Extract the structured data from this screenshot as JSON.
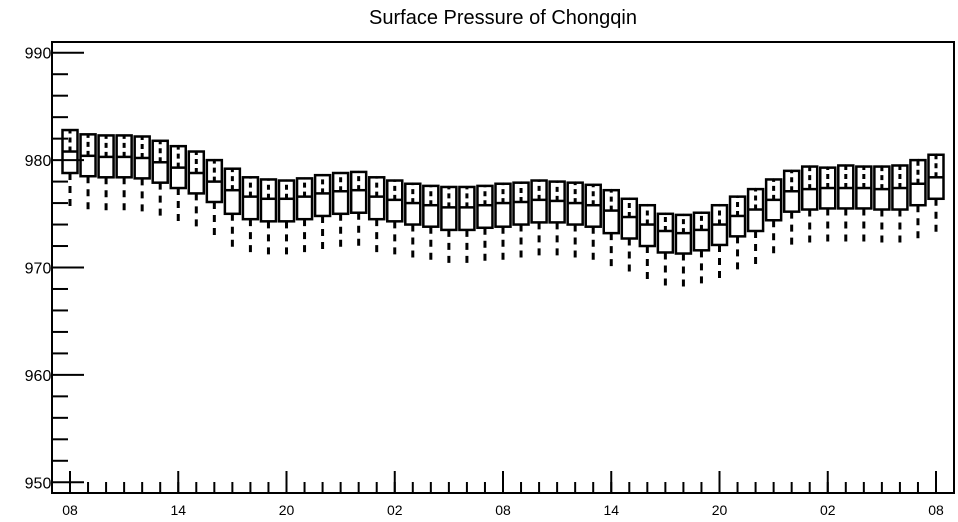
{
  "chart_data": {
    "type": "boxplot",
    "title": "Surface Pressure of Chongqin",
    "xlabel": "",
    "ylabel": "",
    "ylim": [
      949,
      991
    ],
    "yticks": [
      950,
      960,
      970,
      980,
      990
    ],
    "xtick_labels": [
      "08",
      "14",
      "20",
      "02",
      "08",
      "14",
      "20",
      "02",
      "08"
    ],
    "xtick_positions": [
      0,
      6,
      12,
      18,
      24,
      30,
      36,
      42,
      48
    ],
    "grid": false,
    "series": [
      {
        "x": [
          0,
          1,
          2,
          3,
          4,
          5,
          6,
          7,
          8,
          9,
          10,
          11,
          12,
          13,
          14,
          15,
          16,
          17,
          18,
          19,
          20,
          21,
          22,
          23,
          24,
          25,
          26,
          27,
          28,
          29,
          30,
          31,
          32,
          33,
          34,
          35,
          36,
          37,
          38,
          39,
          40,
          41,
          42,
          43,
          44,
          45,
          46,
          47,
          48
        ],
        "whisker_low": [
          975.5,
          975.3,
          975.2,
          975.2,
          975.1,
          974.7,
          974.3,
          973.6,
          972.6,
          971.8,
          971.3,
          971.0,
          971.0,
          971.2,
          971.5,
          971.7,
          971.7,
          971.0,
          970.8,
          970.6,
          970.4,
          970.1,
          970.2,
          970.4,
          970.5,
          970.7,
          970.9,
          970.9,
          970.7,
          970.6,
          970.0,
          969.2,
          968.6,
          968.0,
          968.0,
          968.2,
          968.8,
          969.6,
          970.2,
          971.2,
          972.0,
          972.2,
          972.3,
          972.3,
          972.3,
          972.2,
          972.2,
          972.6,
          973.2
        ],
        "q1": [
          978.8,
          978.5,
          978.4,
          978.4,
          978.3,
          977.9,
          977.4,
          976.9,
          976.1,
          975.0,
          974.5,
          974.3,
          974.3,
          974.5,
          974.8,
          975.0,
          975.1,
          974.5,
          974.3,
          974.0,
          973.8,
          973.5,
          973.5,
          973.7,
          973.8,
          974.0,
          974.2,
          974.2,
          974.0,
          973.8,
          973.2,
          972.7,
          972.0,
          971.4,
          971.3,
          971.6,
          972.1,
          972.9,
          973.4,
          974.4,
          975.2,
          975.4,
          975.5,
          975.5,
          975.5,
          975.4,
          975.4,
          975.8,
          976.4
        ],
        "median": [
          980.8,
          980.4,
          980.3,
          980.3,
          980.2,
          979.8,
          979.3,
          978.8,
          978.0,
          977.2,
          976.6,
          976.4,
          976.4,
          976.6,
          976.9,
          977.1,
          977.2,
          976.6,
          976.3,
          976.0,
          975.8,
          975.6,
          975.6,
          975.8,
          976.0,
          976.1,
          976.3,
          976.2,
          976.0,
          975.8,
          975.3,
          974.7,
          974.0,
          973.4,
          973.2,
          973.5,
          974.0,
          974.8,
          975.4,
          976.3,
          977.1,
          977.3,
          977.4,
          977.4,
          977.4,
          977.3,
          977.4,
          977.8,
          978.4
        ],
        "q3": [
          982.8,
          982.4,
          982.3,
          982.3,
          982.2,
          981.8,
          981.3,
          980.8,
          980.0,
          979.2,
          978.4,
          978.2,
          978.1,
          978.3,
          978.6,
          978.8,
          978.9,
          978.4,
          978.1,
          977.8,
          977.6,
          977.5,
          977.5,
          977.6,
          977.8,
          977.9,
          978.1,
          978.0,
          977.9,
          977.7,
          977.2,
          976.4,
          975.8,
          975.0,
          974.9,
          975.1,
          975.8,
          976.6,
          977.3,
          978.2,
          979.0,
          979.4,
          979.3,
          979.5,
          979.4,
          979.4,
          979.5,
          980.0,
          980.5
        ],
        "whisker_high": [
          982.8,
          982.4,
          982.3,
          982.3,
          982.2,
          981.8,
          981.3,
          980.8,
          980.0,
          979.2,
          978.4,
          978.2,
          978.1,
          978.3,
          978.6,
          978.8,
          978.9,
          978.4,
          978.1,
          977.8,
          977.6,
          977.5,
          977.5,
          977.6,
          977.8,
          977.9,
          978.1,
          978.0,
          977.9,
          977.7,
          977.2,
          976.4,
          975.8,
          975.0,
          974.9,
          975.1,
          975.8,
          976.6,
          977.3,
          978.2,
          979.0,
          979.4,
          979.3,
          979.5,
          979.4,
          979.4,
          979.5,
          980.0,
          980.5
        ]
      }
    ]
  }
}
